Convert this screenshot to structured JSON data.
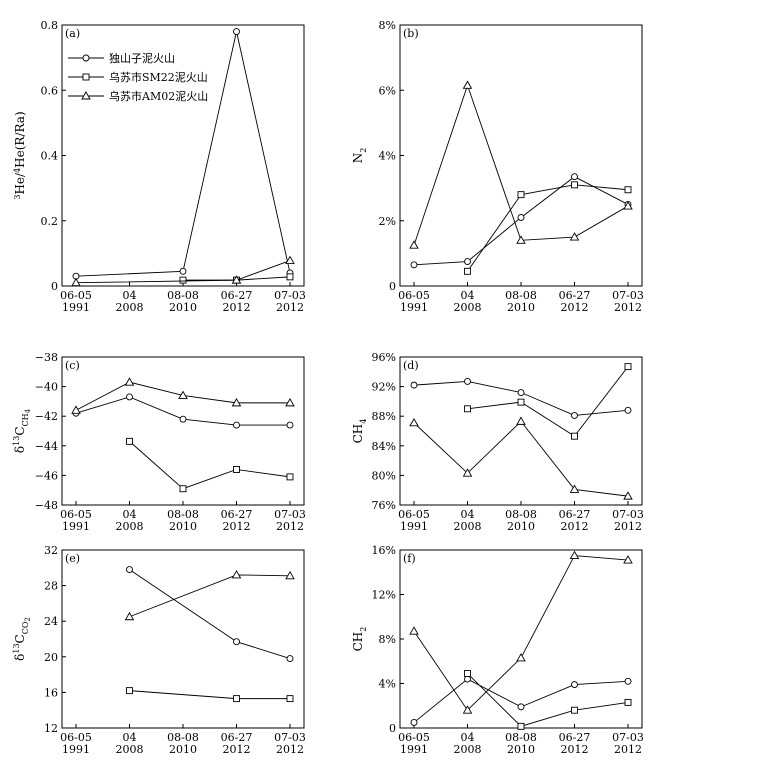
{
  "chart_data": [
    {
      "panel": "(a)",
      "type": "line",
      "categories": [
        [
          "06-05",
          "1991"
        ],
        [
          "04",
          "2008"
        ],
        [
          "08-08",
          "2010"
        ],
        [
          "06-27",
          "2012"
        ],
        [
          "07-03",
          "2012"
        ]
      ],
      "ylabel_parts": [
        "3",
        "He/",
        "4",
        "He(R/Ra)"
      ],
      "ylim": [
        0,
        0.8
      ],
      "yticks": [
        0,
        0.2,
        0.4,
        0.6,
        0.8
      ],
      "ytick_labels": [
        "0",
        "0.2",
        "0.4",
        "0.6",
        "0.8"
      ],
      "legend": {
        "placement": "top-left",
        "entries": [
          "独山子泥火山",
          "乌苏市SM22泥火山",
          "乌苏市AM02泥火山"
        ]
      },
      "series": [
        {
          "name": "独山子泥火山",
          "marker": "circle",
          "x": [
            0,
            2,
            3,
            4
          ],
          "values": [
            0.03,
            0.045,
            0.78,
            0.04
          ]
        },
        {
          "name": "乌苏市SM22泥火山",
          "marker": "square",
          "x": [
            2,
            3,
            4
          ],
          "values": [
            0.018,
            0.018,
            0.028
          ]
        },
        {
          "name": "乌苏市AM02泥火山",
          "marker": "triangle",
          "x": [
            0,
            3,
            4
          ],
          "values": [
            0.01,
            0.018,
            0.078
          ]
        }
      ]
    },
    {
      "panel": "(b)",
      "type": "line",
      "categories": [
        [
          "06-05",
          "1991"
        ],
        [
          "04",
          "2008"
        ],
        [
          "08-08",
          "2010"
        ],
        [
          "06-27",
          "2012"
        ],
        [
          "07-03",
          "2012"
        ]
      ],
      "ylabel_parts": [
        "N",
        "2"
      ],
      "ylim": [
        0,
        8
      ],
      "yticks": [
        0,
        2,
        4,
        6,
        8
      ],
      "ytick_labels": [
        "0",
        "2%",
        "4%",
        "6%",
        "8%"
      ],
      "series": [
        {
          "name": "独山子泥火山",
          "marker": "circle",
          "x": [
            0,
            1,
            2,
            3,
            4
          ],
          "values": [
            0.65,
            0.75,
            2.1,
            3.35,
            2.5
          ]
        },
        {
          "name": "乌苏市SM22泥火山",
          "marker": "square",
          "x": [
            1,
            2,
            3,
            4
          ],
          "values": [
            0.45,
            2.8,
            3.1,
            2.95
          ]
        },
        {
          "name": "乌苏市AM02泥火山",
          "marker": "triangle",
          "x": [
            0,
            1,
            2,
            3,
            4
          ],
          "values": [
            1.25,
            6.15,
            1.4,
            1.5,
            2.45
          ]
        }
      ]
    },
    {
      "panel": "(c)",
      "type": "line",
      "categories": [
        [
          "06-05",
          "1991"
        ],
        [
          "04",
          "2008"
        ],
        [
          "08-08",
          "2010"
        ],
        [
          "06-27",
          "2012"
        ],
        [
          "07-03",
          "2012"
        ]
      ],
      "ylabel_parts": [
        "δ",
        "13",
        "C",
        "CH",
        "4"
      ],
      "ylim": [
        -48,
        -38
      ],
      "yticks": [
        -48,
        -46,
        -44,
        -42,
        -40,
        -38
      ],
      "ytick_labels": [
        "−48",
        "−46",
        "−44",
        "−42",
        "−40",
        "−38"
      ],
      "series": [
        {
          "name": "独山子泥火山",
          "marker": "circle",
          "x": [
            0,
            1,
            2,
            3,
            4
          ],
          "values": [
            -41.8,
            -40.7,
            -42.2,
            -42.6,
            -42.6
          ]
        },
        {
          "name": "乌苏市SM22泥火山",
          "marker": "square",
          "x": [
            1,
            2,
            3,
            4
          ],
          "values": [
            -43.7,
            -46.9,
            -45.6,
            -46.1
          ]
        },
        {
          "name": "乌苏市AM02泥火山",
          "marker": "triangle",
          "x": [
            0,
            1,
            2,
            3,
            4
          ],
          "values": [
            -41.6,
            -39.7,
            -40.6,
            -41.1,
            -41.1
          ]
        }
      ]
    },
    {
      "panel": "(d)",
      "type": "line",
      "categories": [
        [
          "06-05",
          "1991"
        ],
        [
          "04",
          "2008"
        ],
        [
          "08-08",
          "2010"
        ],
        [
          "06-27",
          "2012"
        ],
        [
          "07-03",
          "2012"
        ]
      ],
      "ylabel_parts": [
        "CH",
        "4"
      ],
      "ylim": [
        76,
        96
      ],
      "yticks": [
        76,
        80,
        84,
        88,
        92,
        96
      ],
      "ytick_labels": [
        "76%",
        "80%",
        "84%",
        "88%",
        "92%",
        "96%"
      ],
      "series": [
        {
          "name": "独山子泥火山",
          "marker": "circle",
          "x": [
            0,
            1,
            2,
            3,
            4
          ],
          "values": [
            92.2,
            92.7,
            91.2,
            88.1,
            88.8
          ]
        },
        {
          "name": "乌苏市SM22泥火山",
          "marker": "square",
          "x": [
            1,
            2,
            3,
            4
          ],
          "values": [
            89.0,
            89.9,
            85.3,
            94.7
          ]
        },
        {
          "name": "乌苏市AM02泥火山",
          "marker": "triangle",
          "x": [
            0,
            1,
            2,
            3,
            4
          ],
          "values": [
            87.1,
            80.3,
            87.3,
            78.1,
            77.2
          ]
        }
      ]
    },
    {
      "panel": "(e)",
      "type": "line",
      "categories": [
        [
          "06-05",
          "1991"
        ],
        [
          "04",
          "2008"
        ],
        [
          "08-08",
          "2010"
        ],
        [
          "06-27",
          "2012"
        ],
        [
          "07-03",
          "2012"
        ]
      ],
      "ylabel_parts": [
        "δ",
        "13",
        "C",
        "CO",
        "2"
      ],
      "ylim": [
        12,
        32
      ],
      "yticks": [
        12,
        16,
        20,
        24,
        28,
        32
      ],
      "ytick_labels": [
        "12",
        "16",
        "20",
        "24",
        "28",
        "32"
      ],
      "series": [
        {
          "name": "独山子泥火山",
          "marker": "circle",
          "x": [
            1,
            3,
            4
          ],
          "values": [
            29.8,
            21.7,
            19.8
          ]
        },
        {
          "name": "乌苏市SM22泥火山",
          "marker": "square",
          "x": [
            1,
            3,
            4
          ],
          "values": [
            16.2,
            15.3,
            15.3
          ]
        },
        {
          "name": "乌苏市AM02泥火山",
          "marker": "triangle",
          "x": [
            1,
            3,
            4
          ],
          "values": [
            24.5,
            29.2,
            29.1
          ]
        }
      ]
    },
    {
      "panel": "(f)",
      "type": "line",
      "categories": [
        [
          "06-05",
          "1991"
        ],
        [
          "04",
          "2008"
        ],
        [
          "08-08",
          "2010"
        ],
        [
          "06-27",
          "2012"
        ],
        [
          "07-03",
          "2012"
        ]
      ],
      "ylabel_parts": [
        "CH",
        "2"
      ],
      "ylim": [
        0,
        16
      ],
      "yticks": [
        0,
        4,
        8,
        12,
        16
      ],
      "ytick_labels": [
        "0",
        "4%",
        "8%",
        "12%",
        "16%"
      ],
      "series": [
        {
          "name": "独山子泥火山",
          "marker": "circle",
          "x": [
            0,
            1,
            2,
            3,
            4
          ],
          "values": [
            0.5,
            4.4,
            1.9,
            3.9,
            4.2
          ]
        },
        {
          "name": "乌苏市SM22泥火山",
          "marker": "square",
          "x": [
            1,
            2,
            3,
            4
          ],
          "values": [
            4.9,
            0.15,
            1.6,
            2.3
          ]
        },
        {
          "name": "乌苏市AM02泥火山",
          "marker": "triangle",
          "x": [
            0,
            1,
            2,
            3,
            4
          ],
          "values": [
            8.7,
            1.6,
            6.3,
            15.5,
            15.1
          ]
        }
      ]
    }
  ]
}
